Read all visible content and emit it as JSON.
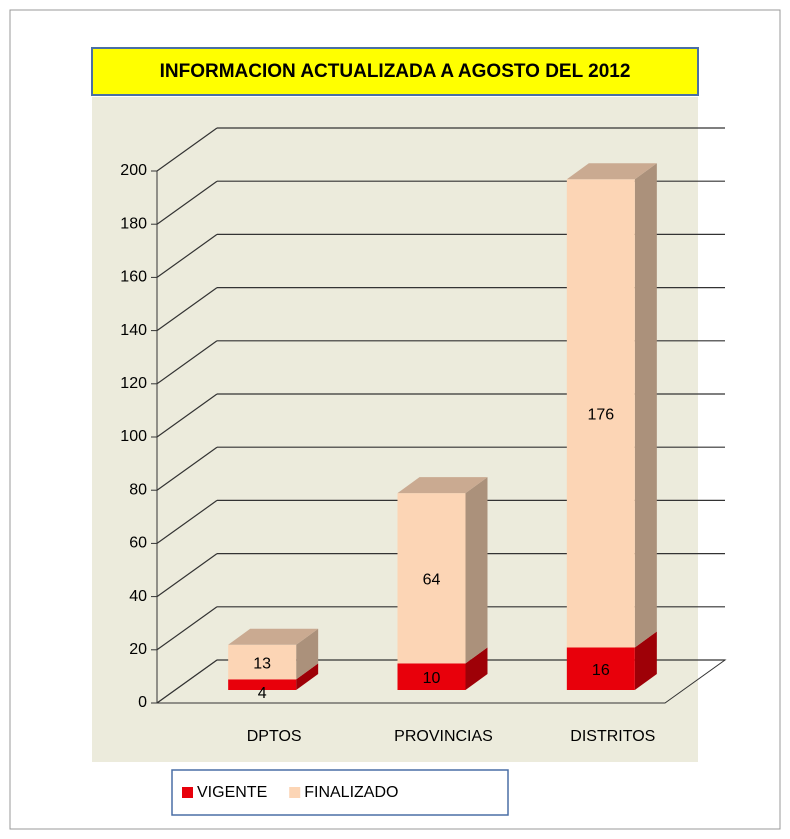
{
  "chart_data": {
    "type": "bar",
    "stacked": true,
    "title": "INFORMACION ACTUALIZADA A AGOSTO DEL 2012",
    "categories": [
      "DPTOS",
      "PROVINCIAS",
      "DISTRITOS"
    ],
    "series": [
      {
        "name": "VIGENTE",
        "color": "#e8000b",
        "values": [
          4,
          10,
          16
        ]
      },
      {
        "name": "FINALIZADO",
        "color": "#fcd5b5",
        "values": [
          13,
          64,
          176
        ]
      }
    ],
    "ylim": [
      0,
      200
    ],
    "yticks": [
      0,
      20,
      40,
      60,
      80,
      100,
      120,
      140,
      160,
      180,
      200
    ],
    "grid": true,
    "legend": "bottom"
  }
}
